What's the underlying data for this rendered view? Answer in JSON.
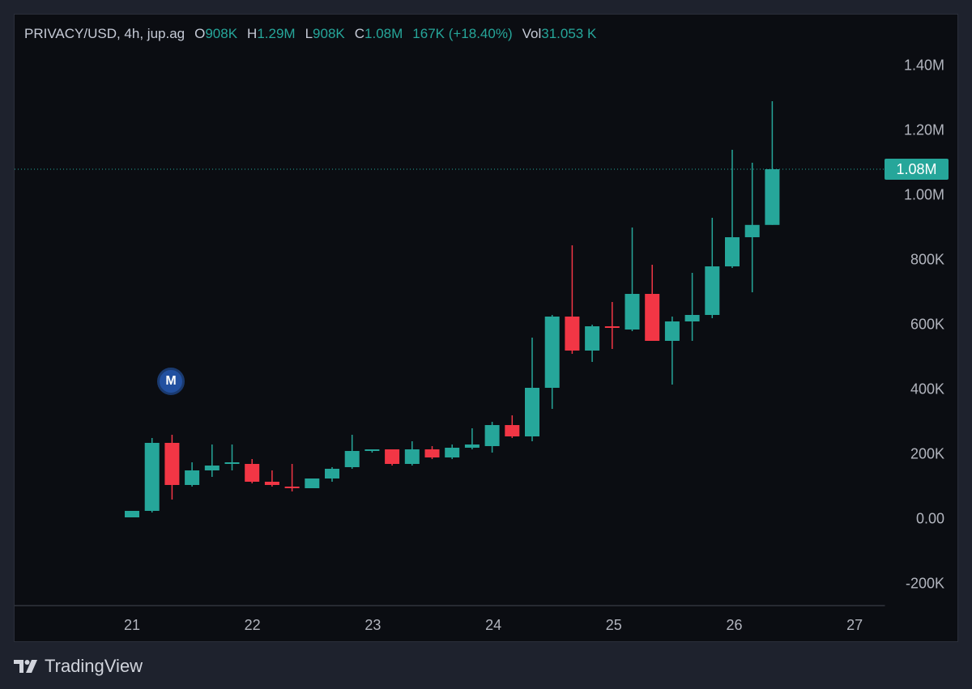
{
  "legend": {
    "symbol": "PRIVACY/USD, 4h, jup.ag",
    "open_label": "O",
    "open": "908K",
    "high_label": "H",
    "high": "1.29M",
    "low_label": "L",
    "low": "908K",
    "close_label": "C",
    "close": "1.08M",
    "change": "167K (+18.40%)",
    "vol_label": "Vol",
    "vol": "31.053 K"
  },
  "last_price_label": "1.08M",
  "marker": "M",
  "branding": "TradingView",
  "colors": {
    "up": "#26a69a",
    "down": "#f23645",
    "background": "#0b0d12",
    "text": "#b2b5be"
  },
  "chart_data": {
    "type": "candlestick",
    "interval": "4h",
    "y_ticks": [
      {
        "value": 1400000,
        "label": "1.40M"
      },
      {
        "value": 1200000,
        "label": "1.20M"
      },
      {
        "value": 1000000,
        "label": "1.00M"
      },
      {
        "value": 800000,
        "label": "800K"
      },
      {
        "value": 600000,
        "label": "600K"
      },
      {
        "value": 400000,
        "label": "400K"
      },
      {
        "value": 200000,
        "label": "200K"
      },
      {
        "value": 0,
        "label": "0.00"
      },
      {
        "value": -200000,
        "label": "-200K"
      }
    ],
    "x_ticks": [
      "21",
      "22",
      "23",
      "24",
      "25",
      "26",
      "27"
    ],
    "ylim": [
      -220000,
      1500000
    ],
    "last_price": 1080000,
    "candles": [
      {
        "o": 5000,
        "h": 25000,
        "l": 5000,
        "c": 25000
      },
      {
        "o": 25000,
        "h": 250000,
        "l": 20000,
        "c": 235000
      },
      {
        "o": 235000,
        "h": 260000,
        "l": 60000,
        "c": 105000
      },
      {
        "o": 105000,
        "h": 175000,
        "l": 100000,
        "c": 150000
      },
      {
        "o": 150000,
        "h": 230000,
        "l": 130000,
        "c": 165000
      },
      {
        "o": 170000,
        "h": 230000,
        "l": 150000,
        "c": 175000
      },
      {
        "o": 170000,
        "h": 185000,
        "l": 110000,
        "c": 115000
      },
      {
        "o": 115000,
        "h": 150000,
        "l": 100000,
        "c": 105000
      },
      {
        "o": 100000,
        "h": 170000,
        "l": 85000,
        "c": 95000
      },
      {
        "o": 95000,
        "h": 125000,
        "l": 95000,
        "c": 125000
      },
      {
        "o": 125000,
        "h": 160000,
        "l": 115000,
        "c": 155000
      },
      {
        "o": 160000,
        "h": 260000,
        "l": 155000,
        "c": 210000
      },
      {
        "o": 210000,
        "h": 215000,
        "l": 205000,
        "c": 215000
      },
      {
        "o": 215000,
        "h": 215000,
        "l": 165000,
        "c": 170000
      },
      {
        "o": 170000,
        "h": 240000,
        "l": 165000,
        "c": 215000
      },
      {
        "o": 215000,
        "h": 225000,
        "l": 185000,
        "c": 190000
      },
      {
        "o": 190000,
        "h": 230000,
        "l": 185000,
        "c": 220000
      },
      {
        "o": 220000,
        "h": 280000,
        "l": 215000,
        "c": 230000
      },
      {
        "o": 225000,
        "h": 300000,
        "l": 205000,
        "c": 290000
      },
      {
        "o": 290000,
        "h": 320000,
        "l": 250000,
        "c": 255000
      },
      {
        "o": 255000,
        "h": 560000,
        "l": 240000,
        "c": 405000
      },
      {
        "o": 405000,
        "h": 630000,
        "l": 340000,
        "c": 625000
      },
      {
        "o": 625000,
        "h": 845000,
        "l": 510000,
        "c": 520000
      },
      {
        "o": 520000,
        "h": 600000,
        "l": 485000,
        "c": 595000
      },
      {
        "o": 595000,
        "h": 670000,
        "l": 525000,
        "c": 590000
      },
      {
        "o": 585000,
        "h": 900000,
        "l": 580000,
        "c": 695000
      },
      {
        "o": 695000,
        "h": 785000,
        "l": 550000,
        "c": 550000
      },
      {
        "o": 550000,
        "h": 625000,
        "l": 415000,
        "c": 610000
      },
      {
        "o": 610000,
        "h": 760000,
        "l": 550000,
        "c": 630000
      },
      {
        "o": 630000,
        "h": 930000,
        "l": 620000,
        "c": 780000
      },
      {
        "o": 780000,
        "h": 1140000,
        "l": 775000,
        "c": 870000
      },
      {
        "o": 870000,
        "h": 1100000,
        "l": 700000,
        "c": 908000
      },
      {
        "o": 908000,
        "h": 1290000,
        "l": 908000,
        "c": 1080000
      }
    ]
  }
}
